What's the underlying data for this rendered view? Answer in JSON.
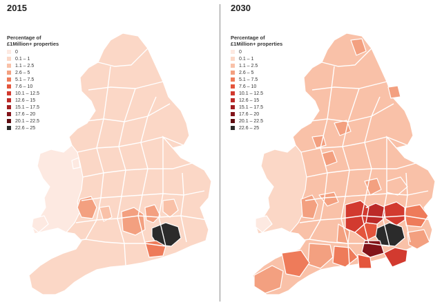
{
  "maps": [
    {
      "year": "2015",
      "legend_title_1": "Percentage of",
      "legend_title_2": "£1Million+ properties"
    },
    {
      "year": "2030",
      "legend_title_1": "Percentage of",
      "legend_title_2": "£1Million+ properties"
    }
  ],
  "legend": [
    {
      "label": "0",
      "color": "#fde9e1"
    },
    {
      "label": "0.1 – 1",
      "color": "#fbd7c6"
    },
    {
      "label": "1.1 – 2.5",
      "color": "#f9c1a8"
    },
    {
      "label": "2.6 – 5",
      "color": "#f3a080"
    },
    {
      "label": "5.1 – 7.5",
      "color": "#ee7b5a"
    },
    {
      "label": "7.6 – 10",
      "color": "#e4553c"
    },
    {
      "label": "10.1 – 12.5",
      "color": "#d23a2f"
    },
    {
      "label": "12.6 – 15",
      "color": "#bc2a28"
    },
    {
      "label": "15.1 – 17.5",
      "color": "#a11e21"
    },
    {
      "label": "17.6 – 20",
      "color": "#82141a"
    },
    {
      "label": "20.1 – 22.5",
      "color": "#5e0b10"
    },
    {
      "label": "22.6 – 25",
      "color": "#2b2b2b"
    }
  ],
  "base_colors": {
    "2015": "#fbd7c6",
    "2030": "#f9c1a8"
  }
}
